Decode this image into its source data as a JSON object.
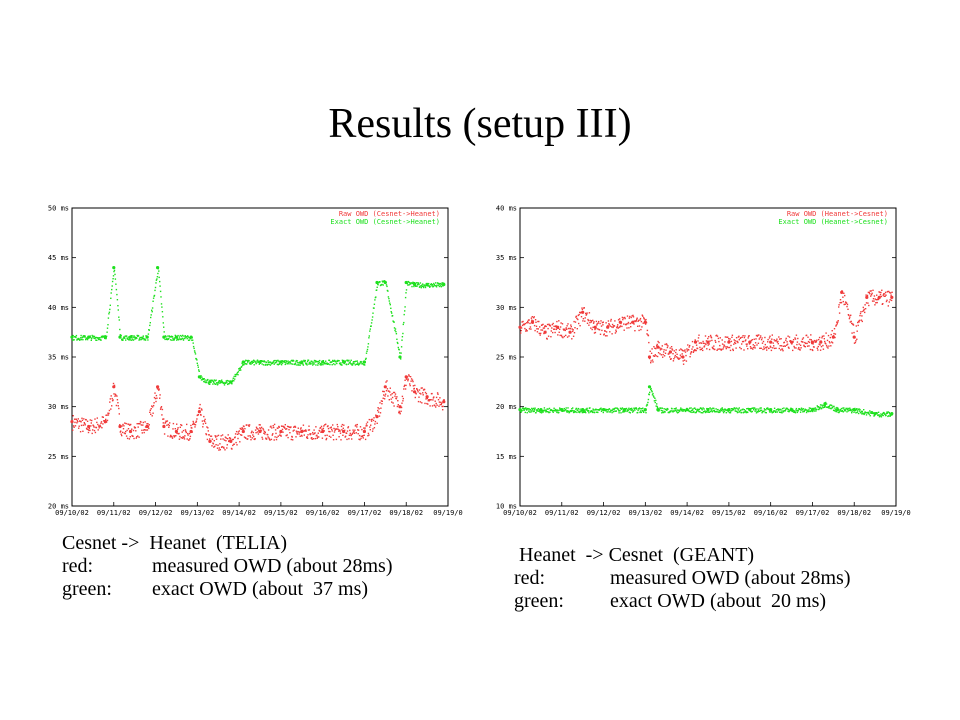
{
  "title": "Results (setup III)",
  "colors": {
    "raw": "#f03a3a",
    "exact": "#1ee01e",
    "frame": "#000000",
    "grid": "#808080"
  },
  "charts": [
    {
      "caption": {
        "heading": "Cesnet ->  Heanet  (TELIA)",
        "lines": [
          {
            "key": "red:",
            "value": "measured OWD (about 28ms)"
          },
          {
            "key": "green:",
            "value": "exact OWD (about  37 ms)"
          }
        ]
      },
      "legend": [
        "Raw OWD (Cesnet->Heanet)",
        "Exact OWD (Cesnet->Heanet)"
      ]
    },
    {
      "caption": {
        "heading": " Heanet  -> Cesnet  (GEANT)",
        "lines": [
          {
            "key": "red:",
            "value": "measured OWD (about 28ms)"
          },
          {
            "key": "green:",
            "value": "exact OWD (about  20 ms)"
          }
        ]
      },
      "legend": [
        "Raw OWD (Heanet->Cesnet)",
        "Exact OWD (Heanet->Cesnet)"
      ]
    }
  ],
  "chart_data": [
    {
      "type": "scatter",
      "title": "",
      "xlabel": "",
      "ylabel": "",
      "x_ticks": [
        "09/10/02",
        "09/11/02",
        "09/12/02",
        "09/13/02",
        "09/14/02",
        "09/15/02",
        "09/16/02",
        "09/17/02",
        "09/18/02",
        "09/19/0"
      ],
      "y_ticks": [
        "50 ms",
        "45 ms",
        "40 ms",
        "35 ms",
        "30 ms",
        "25 ms",
        "20 ms"
      ],
      "ylim": [
        20,
        50
      ],
      "xlim": [
        0,
        9
      ],
      "series": [
        {
          "name": "Raw OWD (Cesnet->Heanet)",
          "color": "#f03a3a",
          "x": [
            0,
            0.4,
            0.8,
            1.0,
            1.15,
            1.4,
            1.8,
            2.05,
            2.2,
            2.5,
            2.85,
            3.05,
            3.3,
            3.8,
            4.1,
            4.5,
            5.0,
            5.5,
            6.0,
            6.5,
            7.0,
            7.3,
            7.5,
            7.85,
            8.0,
            8.2,
            8.5,
            8.9
          ],
          "y": [
            28.5,
            28.0,
            28.5,
            32.0,
            28.0,
            27.5,
            28.0,
            32.0,
            28.0,
            27.5,
            27.5,
            29.5,
            26.5,
            26.5,
            27.5,
            27.5,
            27.5,
            27.5,
            27.5,
            27.5,
            27.5,
            29.0,
            32.0,
            30.0,
            33.0,
            31.5,
            31.0,
            30.5
          ]
        },
        {
          "name": "Exact OWD (Cesnet->Heanet)",
          "color": "#1ee01e",
          "x": [
            0,
            0.4,
            0.8,
            1.0,
            1.15,
            1.4,
            1.8,
            2.05,
            2.2,
            2.5,
            2.85,
            3.05,
            3.3,
            3.8,
            4.1,
            4.5,
            5.0,
            5.5,
            6.0,
            6.5,
            7.0,
            7.3,
            7.5,
            7.85,
            8.0,
            8.2,
            8.5,
            8.9
          ],
          "y": [
            37.0,
            37.0,
            37.0,
            44.0,
            37.0,
            37.0,
            37.0,
            44.0,
            37.0,
            37.0,
            37.0,
            33.0,
            32.5,
            32.5,
            34.5,
            34.5,
            34.5,
            34.5,
            34.5,
            34.5,
            34.5,
            42.5,
            42.5,
            35.0,
            42.5,
            42.3,
            42.3,
            42.3
          ]
        }
      ]
    },
    {
      "type": "scatter",
      "title": "",
      "xlabel": "",
      "ylabel": "",
      "x_ticks": [
        "09/10/02",
        "09/11/02",
        "09/12/02",
        "09/13/02",
        "09/14/02",
        "09/15/02",
        "09/16/02",
        "09/17/02",
        "09/18/02",
        "09/19/0"
      ],
      "y_ticks": [
        "40 ms",
        "35 ms",
        "30 ms",
        "25 ms",
        "20 ms",
        "15 ms",
        "10 ms"
      ],
      "ylim": [
        10,
        40
      ],
      "xlim": [
        0,
        9
      ],
      "series": [
        {
          "name": "Raw OWD (Heanet->Cesnet)",
          "color": "#f03a3a",
          "x": [
            0,
            0.3,
            0.6,
            0.9,
            1.2,
            1.5,
            1.8,
            2.1,
            2.4,
            2.7,
            3.0,
            3.1,
            3.3,
            3.6,
            3.9,
            4.2,
            4.5,
            5.0,
            5.5,
            6.0,
            6.5,
            7.0,
            7.2,
            7.5,
            7.7,
            8.0,
            8.3,
            8.6,
            8.9
          ],
          "y": [
            28.0,
            28.5,
            27.5,
            28.0,
            27.5,
            29.5,
            28.0,
            28.0,
            28.5,
            28.5,
            28.5,
            25.0,
            26.0,
            25.5,
            25.0,
            26.5,
            26.5,
            26.5,
            26.5,
            26.5,
            26.5,
            26.5,
            26.5,
            27.0,
            31.5,
            27.0,
            31.0,
            31.0,
            31.0
          ]
        },
        {
          "name": "Exact OWD (Heanet->Cesnet)",
          "color": "#1ee01e",
          "x": [
            0,
            0.5,
            1.0,
            1.5,
            2.0,
            2.5,
            3.0,
            3.1,
            3.3,
            4.0,
            4.5,
            5.0,
            5.5,
            6.0,
            6.5,
            7.0,
            7.3,
            7.6,
            8.0,
            8.5,
            8.9
          ],
          "y": [
            19.7,
            19.7,
            19.7,
            19.7,
            19.7,
            19.7,
            19.7,
            22.0,
            19.7,
            19.7,
            19.7,
            19.7,
            19.7,
            19.7,
            19.7,
            19.7,
            20.3,
            19.7,
            19.7,
            19.3,
            19.3
          ]
        }
      ]
    }
  ]
}
